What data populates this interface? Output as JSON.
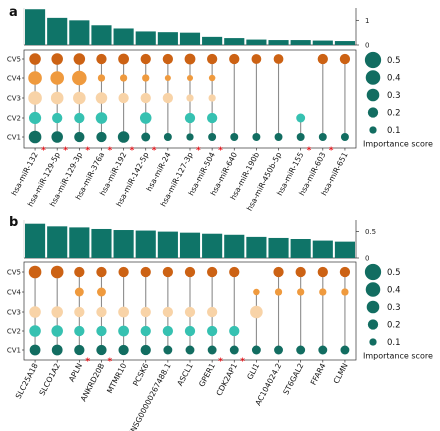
{
  "colors": {
    "bar": "#0f7468",
    "CV5": "#cc6214",
    "CV4": "#ef9a3e",
    "CV3": "#f8d3a7",
    "CV2": "#36c1b1",
    "CV1": "#126d61",
    "stem": "#8c8c8c",
    "star": "#e8141a"
  },
  "legend": {
    "title": "Importance score",
    "sizes": [
      0.5,
      0.4,
      0.3,
      0.2,
      0.1
    ],
    "labels": [
      "0.5",
      "0.4",
      "0.3",
      "0.2",
      "0.1"
    ]
  },
  "chart_data": [
    {
      "panel_label": "a",
      "type": "bar + dot matrix",
      "rows": [
        "CV5",
        "CV4",
        "CV3",
        "CV2",
        "CV1"
      ],
      "features": [
        "hsa-miR-132",
        "hsa-miR-129-5p",
        "hsa-miR-129-3p",
        "hsa-miR-376a",
        "hsa-miR-192",
        "hsa-miR-142-5p",
        "hsa-miR-24",
        "hsa-miR-127-3p",
        "hsa-miR-504",
        "hsa-miR-640",
        "hsa-miR-190b",
        "hsa-miR-450b-5p",
        "hsa-miR-155",
        "hsa-miR-603",
        "hsa-miR-651"
      ],
      "starred": [
        true,
        true,
        true,
        true,
        true,
        true,
        false,
        true,
        true,
        false,
        false,
        false,
        true,
        true,
        false
      ],
      "bar_values": [
        1.45,
        1.1,
        1.0,
        0.8,
        0.67,
        0.55,
        0.52,
        0.5,
        0.33,
        0.28,
        0.22,
        0.2,
        0.2,
        0.18,
        0.16
      ],
      "bar_ylim": [
        0,
        1.5
      ],
      "bar_yticks": [
        0,
        1
      ],
      "scores": {
        "CV5": [
          0.25,
          0.25,
          0.25,
          0.2,
          0.22,
          0.2,
          0.2,
          0.22,
          0.2,
          0.2,
          0.18,
          0.18,
          0.0,
          0.2,
          0.2
        ],
        "CV4": [
          0.35,
          0.35,
          0.4,
          0.1,
          0.1,
          0.1,
          0.07,
          0.07,
          0.08,
          0.0,
          0.0,
          0.0,
          0.0,
          0.0,
          0.0
        ],
        "CV3": [
          0.35,
          0.3,
          0.3,
          0.25,
          0.2,
          0.2,
          0.2,
          0.1,
          0.1,
          0.0,
          0.0,
          0.0,
          0.0,
          0.0,
          0.0
        ],
        "CV2": [
          0.28,
          0.2,
          0.2,
          0.25,
          0.0,
          0.25,
          0.0,
          0.2,
          0.2,
          0.0,
          0.0,
          0.0,
          0.15,
          0.0,
          0.0
        ],
        "CV1": [
          0.3,
          0.25,
          0.2,
          0.2,
          0.25,
          0.15,
          0.12,
          0.1,
          0.12,
          0.12,
          0.12,
          0.12,
          0.12,
          0.12,
          0.12
        ]
      }
    },
    {
      "panel_label": "b",
      "type": "bar + dot matrix",
      "rows": [
        "CV5",
        "CV4",
        "CV3",
        "CV2",
        "CV1"
      ],
      "features": [
        "SLC25A18",
        "SLCO1A2",
        "APLN",
        "ANKRD20B",
        "MTMR10",
        "PCSK6",
        "ENSG00000267488.1",
        "ASCL1",
        "GPER1",
        "CDK2AP1",
        "GLI1",
        "AC104024.2",
        "ST6GAL2",
        "FFAR4",
        "CLMN"
      ],
      "starred": [
        false,
        false,
        true,
        true,
        false,
        false,
        false,
        false,
        true,
        true,
        false,
        false,
        false,
        false,
        false
      ],
      "bar_values": [
        0.65,
        0.6,
        0.58,
        0.55,
        0.53,
        0.52,
        0.5,
        0.48,
        0.46,
        0.44,
        0.4,
        0.38,
        0.36,
        0.33,
        0.31
      ],
      "bar_ylim": [
        0,
        0.72
      ],
      "bar_yticks": [
        0,
        0.5
      ],
      "scores": {
        "CV5": [
          0.3,
          0.3,
          0.2,
          0.2,
          0.2,
          0.2,
          0.2,
          0.2,
          0.2,
          0.2,
          0.0,
          0.2,
          0.2,
          0.2,
          0.2
        ],
        "CV4": [
          0.0,
          0.0,
          0.15,
          0.15,
          0.0,
          0.0,
          0.0,
          0.0,
          0.0,
          0.0,
          0.08,
          0.1,
          0.1,
          0.1,
          0.1
        ],
        "CV3": [
          0.25,
          0.25,
          0.2,
          0.2,
          0.22,
          0.2,
          0.2,
          0.2,
          0.2,
          0.0,
          0.3,
          0.0,
          0.0,
          0.0,
          0.0
        ],
        "CV2": [
          0.25,
          0.25,
          0.2,
          0.2,
          0.22,
          0.2,
          0.2,
          0.2,
          0.2,
          0.2,
          0.0,
          0.0,
          0.0,
          0.0,
          0.0
        ],
        "CV1": [
          0.22,
          0.22,
          0.2,
          0.2,
          0.2,
          0.2,
          0.15,
          0.15,
          0.15,
          0.15,
          0.15,
          0.15,
          0.15,
          0.15,
          0.15
        ]
      }
    }
  ]
}
